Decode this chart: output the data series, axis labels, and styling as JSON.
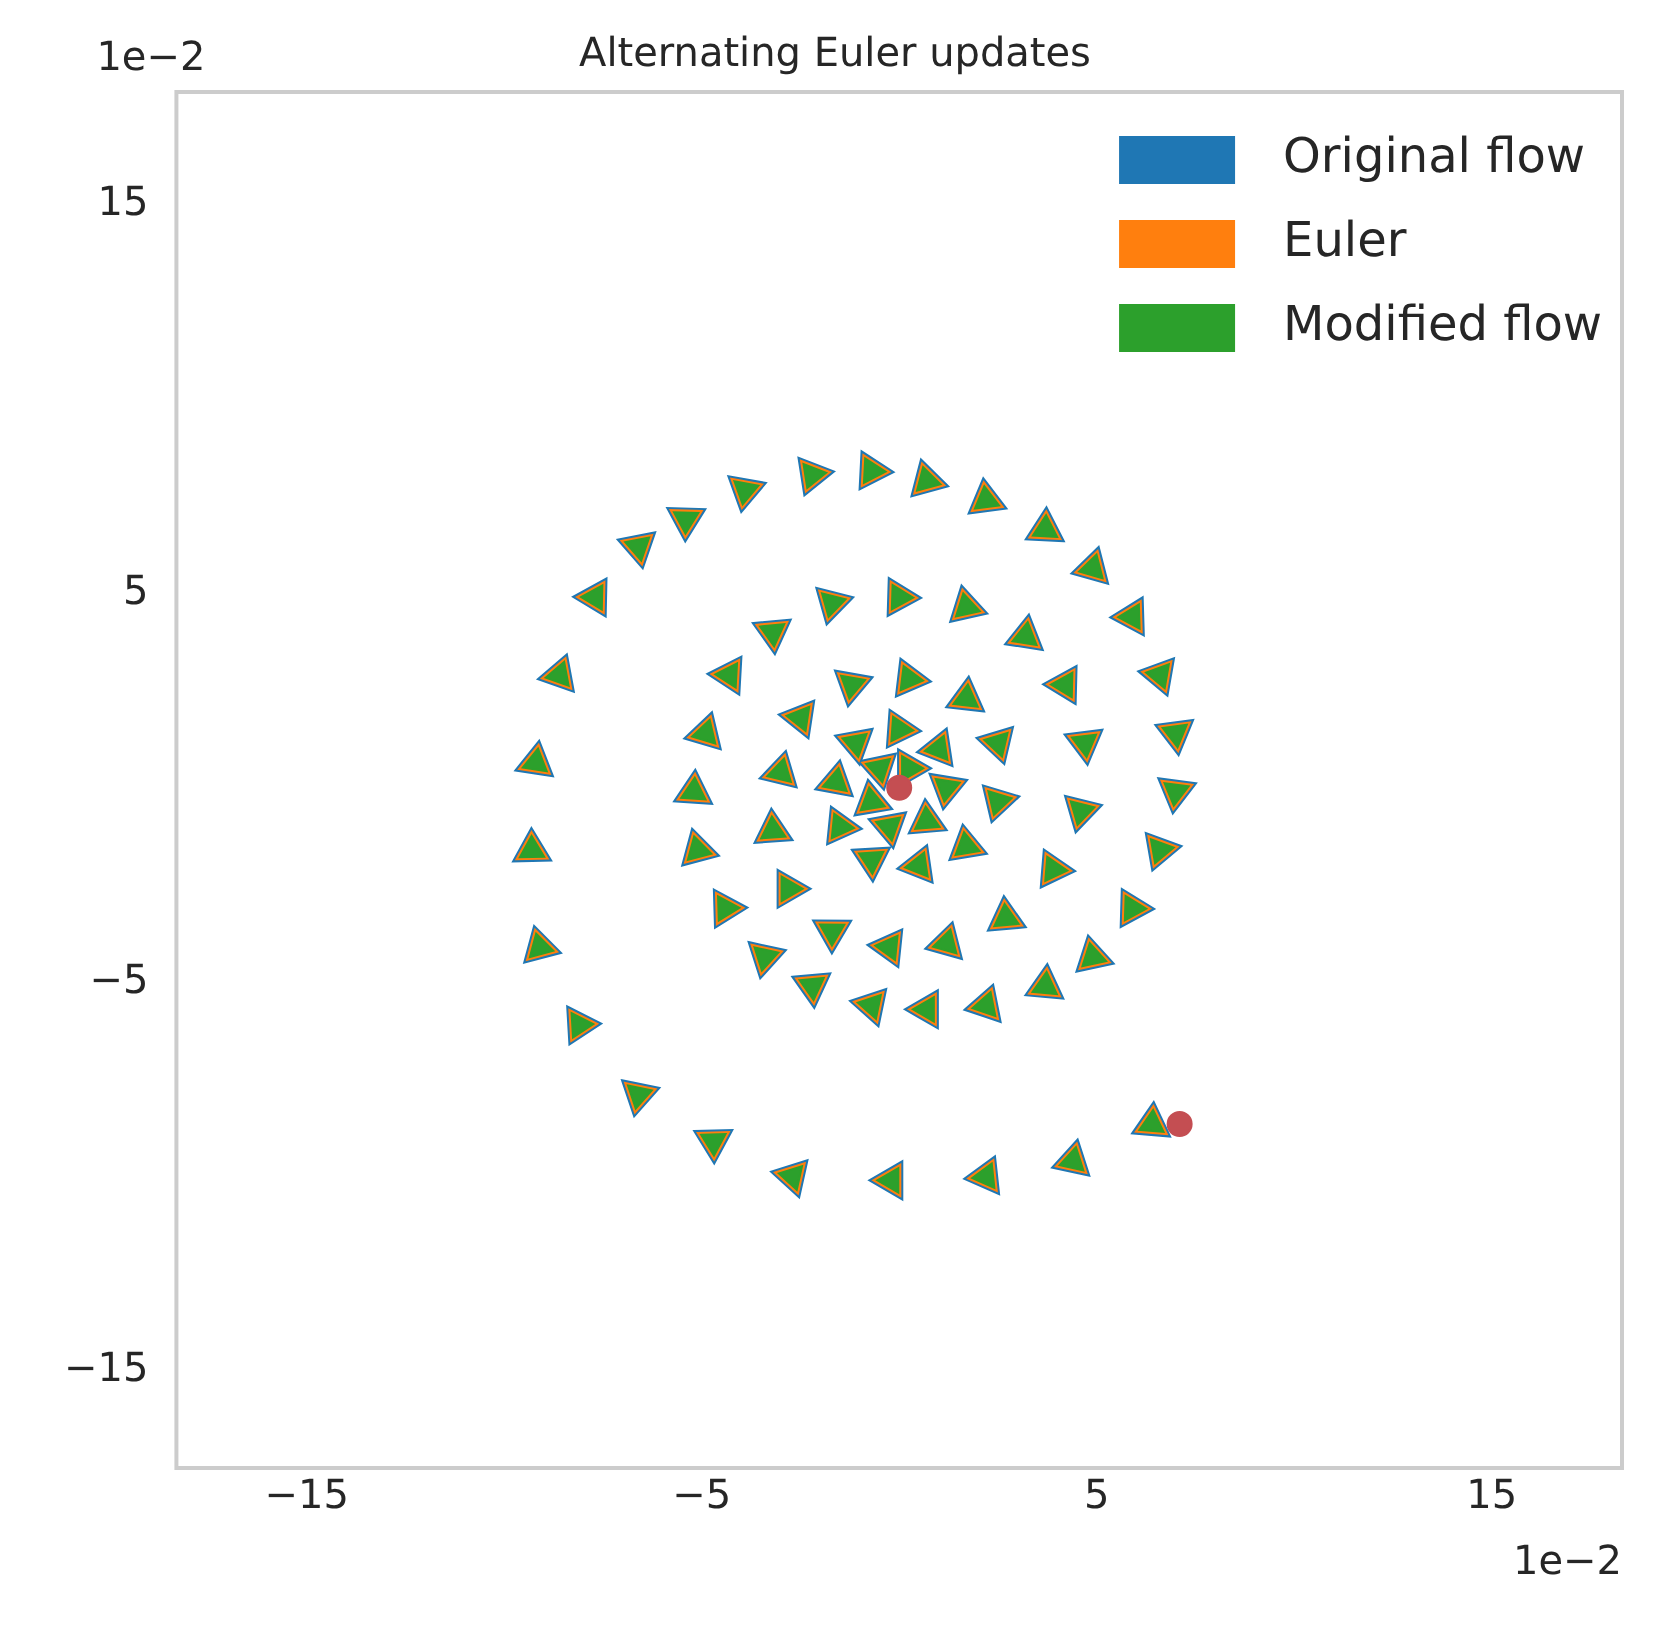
{
  "chart_data": {
    "type": "scatter",
    "title": "Alternating Euler updates",
    "xlim": [
      -18.3,
      18.3
    ],
    "ylim": [
      -17.5,
      17.9
    ],
    "xticks": [
      -15,
      -5,
      5,
      15
    ],
    "yticks": [
      -15,
      -5,
      5,
      15
    ],
    "grid": false,
    "legend": "top right",
    "marker": "triangle",
    "annotations": [
      "1e−2",
      "1e−2"
    ],
    "series": [
      {
        "name": "Original flow",
        "color": "#1f77b4",
        "x": [
          6.4,
          4.4,
          2.2,
          -0.2,
          -2.7,
          -4.7,
          -6.6,
          -8.1,
          -9.1,
          -9.3,
          -9.2,
          -8.6,
          -7.7,
          -6.6,
          -5.4,
          -3.9,
          -2.2,
          -0.7,
          0.7,
          2.2,
          3.7,
          4.9,
          5.9,
          6.6,
          7.0,
          7.0,
          6.6,
          5.9,
          4.9,
          3.7,
          2.2,
          0.7,
          -0.7,
          -2.2,
          -3.4,
          -4.4,
          -5.1,
          -5.2,
          -4.9,
          -4.3,
          -3.2,
          -1.7,
          0,
          1.7,
          3.2,
          4.2,
          4.7,
          4.6,
          3.9,
          2.7,
          1.2,
          -0.25,
          -1.7,
          -2.8,
          -3.2,
          -3.0,
          -2.5,
          -1.2,
          0.25,
          1.7,
          2.5,
          2.5,
          1.7,
          0.5,
          -0.7,
          -1.5,
          -1.6,
          -1.1,
          0,
          1,
          1.2,
          0.7,
          -0.25,
          -0.7,
          -0.5,
          0.25
        ],
        "values": [
          -8.65,
          -9.6,
          -10,
          -10.1,
          -10,
          -9.1,
          -7.9,
          -6.1,
          -4.1,
          -1.6,
          0.65,
          2.9,
          4.9,
          6.2,
          6.9,
          7.65,
          8.05,
          8.15,
          7.9,
          7.4,
          6.65,
          5.65,
          4.4,
          2.9,
          1.4,
          -0.1,
          -1.6,
          -3.1,
          -4.35,
          -5.1,
          -5.6,
          -5.7,
          -5.6,
          -5.1,
          -4.35,
          -3.1,
          -1.6,
          -0.1,
          1.4,
          2.9,
          4.0,
          4.75,
          4.9,
          4.65,
          3.9,
          2.65,
          1.15,
          -0.6,
          -2.1,
          -3.35,
          -4,
          -4.1,
          -3.7,
          -2.6,
          -1.1,
          0.4,
          1.8,
          2.65,
          2.8,
          2.3,
          1.15,
          -0.35,
          -1.5,
          -2,
          -1.85,
          -1,
          0.15,
          1.15,
          1.5,
          1,
          0,
          -0.85,
          -1,
          -0.35,
          0.5,
          0.5
        ]
      },
      {
        "name": "Euler",
        "color": "#ff7f0e",
        "x": [
          6.4,
          4.4,
          2.2,
          -0.2,
          -2.7,
          -4.7,
          -6.6,
          -8.1,
          -9.1,
          -9.3,
          -9.2,
          -8.6,
          -7.7,
          -6.6,
          -5.4,
          -3.9,
          -2.2,
          -0.7,
          0.7,
          2.2,
          3.7,
          4.9,
          5.9,
          6.6,
          7.0,
          7.0,
          6.6,
          5.9,
          4.9,
          3.7,
          2.2,
          0.7,
          -0.7,
          -2.2,
          -3.4,
          -4.4,
          -5.1,
          -5.2,
          -4.9,
          -4.3,
          -3.2,
          -1.7,
          0,
          1.7,
          3.2,
          4.2,
          4.7,
          4.6,
          3.9,
          2.7,
          1.2,
          -0.25,
          -1.7,
          -2.8,
          -3.2,
          -3.0,
          -2.5,
          -1.2,
          0.25,
          1.7,
          2.5,
          2.5,
          1.7,
          0.5,
          -0.7,
          -1.5,
          -1.6,
          -1.1,
          0,
          1,
          1.2,
          0.7,
          -0.25,
          -0.7,
          -0.5,
          0.25
        ],
        "values": [
          -8.65,
          -9.6,
          -10,
          -10.1,
          -10,
          -9.1,
          -7.9,
          -6.1,
          -4.1,
          -1.6,
          0.65,
          2.9,
          4.9,
          6.2,
          6.9,
          7.65,
          8.05,
          8.15,
          7.9,
          7.4,
          6.65,
          5.65,
          4.4,
          2.9,
          1.4,
          -0.1,
          -1.6,
          -3.1,
          -4.35,
          -5.1,
          -5.6,
          -5.7,
          -5.6,
          -5.1,
          -4.35,
          -3.1,
          -1.6,
          -0.1,
          1.4,
          2.9,
          4.0,
          4.75,
          4.9,
          4.65,
          3.9,
          2.65,
          1.15,
          -0.6,
          -2.1,
          -3.35,
          -4,
          -4.1,
          -3.7,
          -2.6,
          -1.1,
          0.4,
          1.8,
          2.65,
          2.8,
          2.3,
          1.15,
          -0.35,
          -1.5,
          -2,
          -1.85,
          -1,
          0.15,
          1.15,
          1.5,
          1,
          0,
          -0.85,
          -1,
          -0.35,
          0.5,
          0.5
        ]
      },
      {
        "name": "Modified flow",
        "color": "#2ca02c",
        "x": [
          6.4,
          4.4,
          2.2,
          -0.2,
          -2.7,
          -4.7,
          -6.6,
          -8.1,
          -9.1,
          -9.3,
          -9.2,
          -8.6,
          -7.7,
          -6.6,
          -5.4,
          -3.9,
          -2.2,
          -0.7,
          0.7,
          2.2,
          3.7,
          4.9,
          5.9,
          6.6,
          7.0,
          7.0,
          6.6,
          5.9,
          4.9,
          3.7,
          2.2,
          0.7,
          -0.7,
          -2.2,
          -3.4,
          -4.4,
          -5.1,
          -5.2,
          -4.9,
          -4.3,
          -3.2,
          -1.7,
          0,
          1.7,
          3.2,
          4.2,
          4.7,
          4.6,
          3.9,
          2.7,
          1.2,
          -0.25,
          -1.7,
          -2.8,
          -3.2,
          -3.0,
          -2.5,
          -1.2,
          0.25,
          1.7,
          2.5,
          2.5,
          1.7,
          0.5,
          -0.7,
          -1.5,
          -1.6,
          -1.1,
          0,
          1,
          1.2,
          0.7,
          -0.25,
          -0.7,
          -0.5,
          0.25
        ],
        "values": [
          -8.65,
          -9.6,
          -10,
          -10.1,
          -10,
          -9.1,
          -7.9,
          -6.1,
          -4.1,
          -1.6,
          0.65,
          2.9,
          4.9,
          6.2,
          6.9,
          7.65,
          8.05,
          8.15,
          7.9,
          7.4,
          6.65,
          5.65,
          4.4,
          2.9,
          1.4,
          -0.1,
          -1.6,
          -3.1,
          -4.35,
          -5.1,
          -5.6,
          -5.7,
          -5.6,
          -5.1,
          -4.35,
          -3.1,
          -1.6,
          -0.1,
          1.4,
          2.9,
          4.0,
          4.75,
          4.9,
          4.65,
          3.9,
          2.65,
          1.15,
          -0.6,
          -2.1,
          -3.35,
          -4,
          -4.1,
          -3.7,
          -2.6,
          -1.1,
          0.4,
          1.8,
          2.65,
          2.8,
          2.3,
          1.15,
          -0.35,
          -1.5,
          -2,
          -1.85,
          -1,
          0.15,
          1.15,
          1.5,
          1,
          0,
          -0.85,
          -1,
          -0.35,
          0.5,
          0.5
        ]
      },
      {
        "color": "#c44e52",
        "marker": "circle",
        "x": [
          7.1,
          0
        ],
        "values": [
          -8.65,
          0
        ]
      }
    ]
  }
}
